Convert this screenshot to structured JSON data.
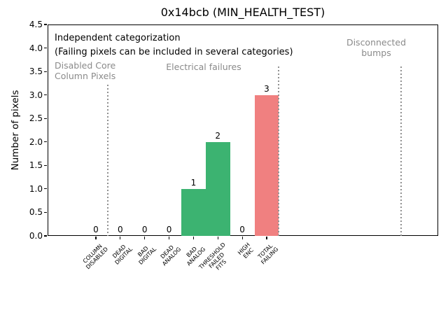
{
  "chart_data": {
    "type": "bar",
    "title": "0x14bcb (MIN_HEALTH_TEST)",
    "xlabel": "",
    "ylabel": "Number of pixels",
    "ylim": [
      0,
      4.5
    ],
    "ytick_step": 0.5,
    "yticks": [
      "0.0",
      "0.5",
      "1.0",
      "1.5",
      "2.0",
      "2.5",
      "3.0",
      "3.5",
      "4.0",
      "4.5"
    ],
    "grid": false,
    "legend": null,
    "categories": [
      "COLUMN\nDISABLED",
      "DEAD\nDIGITAL",
      "BAD\nDIGITAL",
      "DEAD\nANALOG",
      "BAD\nANALOG",
      "THRESHOLD\nFAILED\nFITS",
      "HIGH\nENC",
      "TOTAL\nFAILING"
    ],
    "values": [
      0,
      0,
      0,
      0,
      1,
      2,
      0,
      3
    ],
    "bar_labels": [
      "0",
      "0",
      "0",
      "0",
      "1",
      "2",
      "0",
      "3"
    ],
    "bar_colors": [
      null,
      null,
      null,
      null,
      "#3cb371",
      "#3cb371",
      null,
      "#f08080"
    ],
    "annotations": {
      "note_line1": "Independent categorization",
      "note_line2": "(Failing pixels can be included in several categories)",
      "sections": [
        {
          "label": "Disabled Core\nColumn Pixels"
        },
        {
          "label": "Electrical failures"
        },
        {
          "label": "Disconnected\nbumps"
        }
      ]
    },
    "colors": {
      "pass_bar_green": "#3cb371",
      "fail_bar_red": "#f08080",
      "section_text_gray": "#8a8a8a",
      "separator_gray": "#909090"
    }
  }
}
